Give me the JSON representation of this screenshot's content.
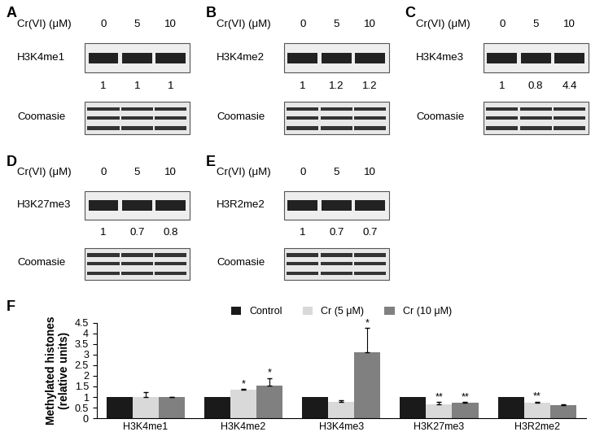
{
  "blots": [
    {
      "panel": "A",
      "treatment": "Cr(VI) (μM)",
      "doses": [
        0,
        5,
        10
      ],
      "antibody": "H3K4me1",
      "values": [
        1,
        1,
        1
      ],
      "loading": "Coomasie"
    },
    {
      "panel": "B",
      "treatment": "Cr(VI) (μM)",
      "doses": [
        0,
        5,
        10
      ],
      "antibody": "H3K4me2",
      "values": [
        1,
        1.2,
        1.2
      ],
      "loading": "Coomasie"
    },
    {
      "panel": "C",
      "treatment": "Cr(VI) (μM)",
      "doses": [
        0,
        5,
        10
      ],
      "antibody": "H3K4me3",
      "values": [
        1,
        0.8,
        4.4
      ],
      "loading": "Coomasie"
    },
    {
      "panel": "D",
      "treatment": "Cr(VI) (μM)",
      "doses": [
        0,
        5,
        10
      ],
      "antibody": "H3K27me3",
      "values": [
        1,
        0.7,
        0.8
      ],
      "loading": "Coomasie"
    },
    {
      "panel": "E",
      "treatment": "Cr(VI) (μM)",
      "doses": [
        0,
        5,
        10
      ],
      "antibody": "H3R2me2",
      "values": [
        1,
        0.7,
        0.7
      ],
      "loading": "Coomasie"
    }
  ],
  "chart_panel": "F",
  "chart_data": {
    "type": "bar",
    "y_label": "Methylated histones\n(relative units)",
    "categories": [
      "H3K4me1",
      "H3K4me2",
      "H3K4me3",
      "H3K27me3",
      "H3R2me2"
    ],
    "series": [
      {
        "name": "Control",
        "color": "#1a1a1a",
        "values": [
          1,
          1,
          1,
          1,
          1
        ]
      },
      {
        "name": "Cr (5 μM)",
        "color": "#d9d9d9",
        "values": [
          1.0,
          1.33,
          0.78,
          0.67,
          0.75
        ],
        "errors": [
          0.25,
          0.05,
          0.05,
          0.1,
          0.03
        ],
        "annotations": [
          null,
          "*",
          null,
          "**",
          "**"
        ]
      },
      {
        "name": "Cr (10 μM)",
        "color": "#808080",
        "values": [
          1.0,
          1.55,
          3.1,
          0.73,
          0.62
        ],
        "errors": [
          0.02,
          0.35,
          1.15,
          0.03,
          0.05
        ],
        "annotations": [
          null,
          "*",
          "*",
          "**",
          null
        ]
      }
    ],
    "ylim": [
      0,
      4.5
    ],
    "yticks": [
      0,
      0.5,
      1,
      1.5,
      2,
      2.5,
      3,
      3.5,
      4,
      4.5
    ],
    "grid": false,
    "legend": "top"
  }
}
